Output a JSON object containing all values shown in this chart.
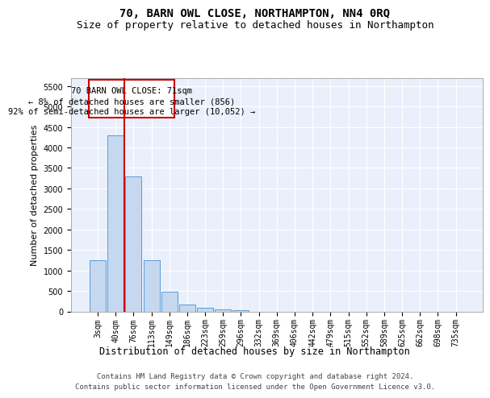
{
  "title": "70, BARN OWL CLOSE, NORTHAMPTON, NN4 0RQ",
  "subtitle": "Size of property relative to detached houses in Northampton",
  "xlabel": "Distribution of detached houses by size in Northampton",
  "ylabel": "Number of detached properties",
  "bar_color": "#c5d8f0",
  "bar_edge_color": "#5b9bd5",
  "background_color": "#ffffff",
  "plot_bg_color": "#eaf0fb",
  "grid_color": "#ffffff",
  "annotation_box_color": "#cc0000",
  "annotation_line1": "70 BARN OWL CLOSE: 71sqm",
  "annotation_line2": "← 8% of detached houses are smaller (856)",
  "annotation_line3": "92% of semi-detached houses are larger (10,052) →",
  "x_labels": [
    "3sqm",
    "40sqm",
    "76sqm",
    "113sqm",
    "149sqm",
    "186sqm",
    "223sqm",
    "259sqm",
    "296sqm",
    "332sqm",
    "369sqm",
    "406sqm",
    "442sqm",
    "479sqm",
    "515sqm",
    "552sqm",
    "589sqm",
    "625sqm",
    "662sqm",
    "698sqm",
    "735sqm"
  ],
  "bar_heights": [
    1250,
    4300,
    3300,
    1250,
    480,
    170,
    80,
    50,
    30,
    0,
    0,
    0,
    0,
    0,
    0,
    0,
    0,
    0,
    0,
    0,
    0
  ],
  "ylim": [
    0,
    5700
  ],
  "yticks": [
    0,
    500,
    1000,
    1500,
    2000,
    2500,
    3000,
    3500,
    4000,
    4500,
    5000,
    5500
  ],
  "footer": "Contains HM Land Registry data © Crown copyright and database right 2024.\nContains public sector information licensed under the Open Government Licence v3.0.",
  "title_fontsize": 10,
  "subtitle_fontsize": 9,
  "xlabel_fontsize": 8.5,
  "ylabel_fontsize": 8,
  "tick_fontsize": 7,
  "annotation_fontsize": 7.5,
  "footer_fontsize": 6.5
}
